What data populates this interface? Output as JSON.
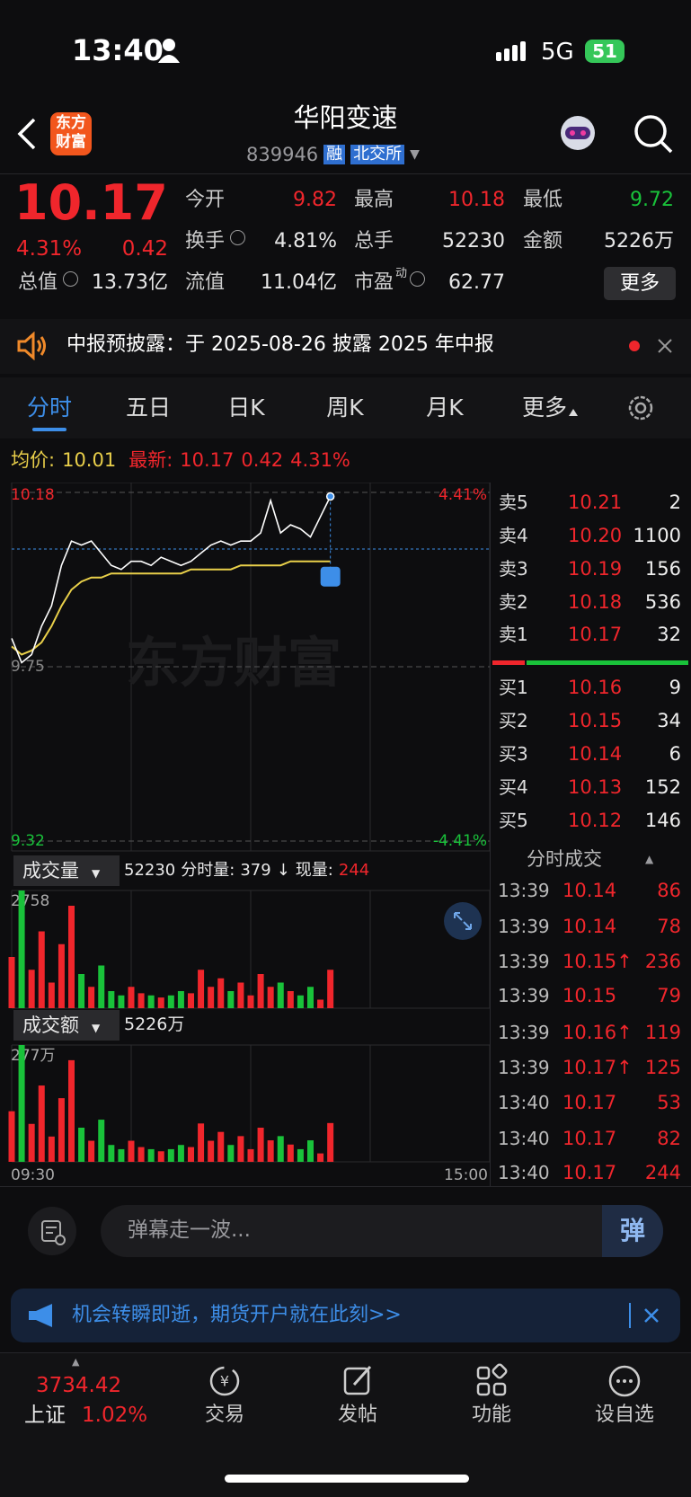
{
  "status_bar": {
    "time": "13:40",
    "network": "5G",
    "battery": "51"
  },
  "header": {
    "logo": [
      "东方",
      "财富"
    ],
    "title": "华阳变速",
    "code": "839946",
    "tags": [
      "融",
      "北交所"
    ]
  },
  "quote": {
    "price": "10.17",
    "change_pct": "4.31%",
    "change": "0.42",
    "stats": [
      [
        {
          "label": "今开",
          "value": "9.82"
        },
        {
          "label": "最高",
          "value": "10.18"
        },
        {
          "label": "最低",
          "value": "9.72"
        }
      ],
      [
        {
          "label": "换手",
          "value": "4.81%"
        },
        {
          "label": "总手",
          "value": "52230"
        },
        {
          "label": "金额",
          "value": "5226万"
        }
      ],
      [
        {
          "label": "总值",
          "value": "13.73亿"
        },
        {
          "label": "流值",
          "value": "11.04亿"
        },
        {
          "label": "市盈",
          "sup": "动",
          "value": "62.77"
        }
      ]
    ],
    "more": "更多"
  },
  "notice": "中报预披露：于 2025-08-26 披露 2025 年中报",
  "tabs": [
    "分时",
    "五日",
    "日K",
    "周K",
    "月K",
    "更多"
  ],
  "intraday": {
    "avg_label": "均价:",
    "avg": "10.01",
    "latest_label": "最新:",
    "latest": "10.17",
    "change": "0.42",
    "change_pct": "4.31%",
    "watermark": "东方财富",
    "ylim": [
      9.32,
      10.18
    ],
    "yticks": [
      10.18,
      9.75,
      9.32
    ],
    "pct_labels": [
      "4.41%",
      "-4.41%"
    ],
    "xlabels": [
      "09:30",
      "15:00"
    ],
    "price": [
      9.82,
      9.76,
      9.78,
      9.85,
      9.9,
      10.0,
      10.06,
      10.05,
      10.06,
      10.03,
      10.0,
      9.99,
      10.01,
      10.01,
      10.0,
      10.02,
      10.01,
      10.0,
      10.01,
      10.03,
      10.05,
      10.06,
      10.05,
      10.06,
      10.06,
      10.08,
      10.16,
      10.08,
      10.1,
      10.09,
      10.07,
      10.12,
      10.17
    ],
    "avg_line": [
      9.8,
      9.78,
      9.79,
      9.81,
      9.85,
      9.9,
      9.94,
      9.96,
      9.97,
      9.97,
      9.98,
      9.98,
      9.98,
      9.98,
      9.98,
      9.98,
      9.98,
      9.98,
      9.99,
      9.99,
      9.99,
      9.99,
      9.99,
      10.0,
      10.0,
      10.0,
      10.0,
      10.0,
      10.01,
      10.01,
      10.01,
      10.01,
      10.01
    ]
  },
  "volume": {
    "label": "成交量",
    "total": "52230",
    "minute_label": "分时量:",
    "minute": "379",
    "arrow": "↓",
    "current_label": "现量:",
    "current": "244",
    "ylim": [
      0,
      2758
    ],
    "yticks": [
      2758
    ],
    "values": [
      1200,
      2758,
      900,
      1800,
      600,
      1500,
      2400,
      800,
      500,
      1000,
      400,
      300,
      500,
      350,
      300,
      250,
      300,
      400,
      350,
      900,
      500,
      700,
      400,
      600,
      300,
      800,
      500,
      600,
      400,
      300,
      500,
      200,
      900
    ]
  },
  "amount": {
    "label": "成交额",
    "total": "5226万",
    "ylim": [
      0,
      277
    ],
    "yticks": [
      {
        "value": 277,
        "label": "277万"
      }
    ],
    "values": [
      120,
      277,
      90,
      181,
      60,
      151,
      241,
      81,
      50,
      100,
      40,
      30,
      50,
      35,
      30,
      25,
      30,
      40,
      35,
      91,
      50,
      71,
      40,
      61,
      30,
      81,
      51,
      61,
      41,
      30,
      51,
      20,
      92
    ]
  },
  "order_book": {
    "asks": [
      {
        "label": "卖5",
        "price": "10.21",
        "volume": "2"
      },
      {
        "label": "卖4",
        "price": "10.20",
        "volume": "1100"
      },
      {
        "label": "卖3",
        "price": "10.19",
        "volume": "156"
      },
      {
        "label": "卖2",
        "price": "10.18",
        "volume": "536"
      },
      {
        "label": "卖1",
        "price": "10.17",
        "volume": "32"
      }
    ],
    "bids": [
      {
        "label": "买1",
        "price": "10.16",
        "volume": "9"
      },
      {
        "label": "买2",
        "price": "10.15",
        "volume": "34"
      },
      {
        "label": "买3",
        "price": "10.14",
        "volume": "6"
      },
      {
        "label": "买4",
        "price": "10.13",
        "volume": "152"
      },
      {
        "label": "买5",
        "price": "10.12",
        "volume": "146"
      }
    ]
  },
  "trades": {
    "title": "分时成交",
    "rows": [
      {
        "time": "13:39",
        "price": "10.14",
        "volume": "86"
      },
      {
        "time": "13:39",
        "price": "10.14",
        "volume": "78"
      },
      {
        "time": "13:39",
        "price": "10.15↑",
        "volume": "236"
      },
      {
        "time": "13:39",
        "price": "10.15",
        "volume": "79"
      },
      {
        "time": "13:39",
        "price": "10.16↑",
        "volume": "119"
      },
      {
        "time": "13:39",
        "price": "10.17↑",
        "volume": "125"
      },
      {
        "time": "13:40",
        "price": "10.17",
        "volume": "53"
      },
      {
        "time": "13:40",
        "price": "10.17",
        "volume": "82"
      },
      {
        "time": "13:40",
        "price": "10.17",
        "volume": "244"
      }
    ]
  },
  "comment": {
    "placeholder": "弹幕走一波...",
    "button": "弹"
  },
  "ad": {
    "text": "机会转瞬即逝，期货开户就在此刻>>"
  },
  "bottom_nav": {
    "index_value": "3734.42",
    "index_name": "上证",
    "index_change": "1.02%",
    "items": [
      "交易",
      "发帖",
      "功能",
      "设自选"
    ]
  }
}
